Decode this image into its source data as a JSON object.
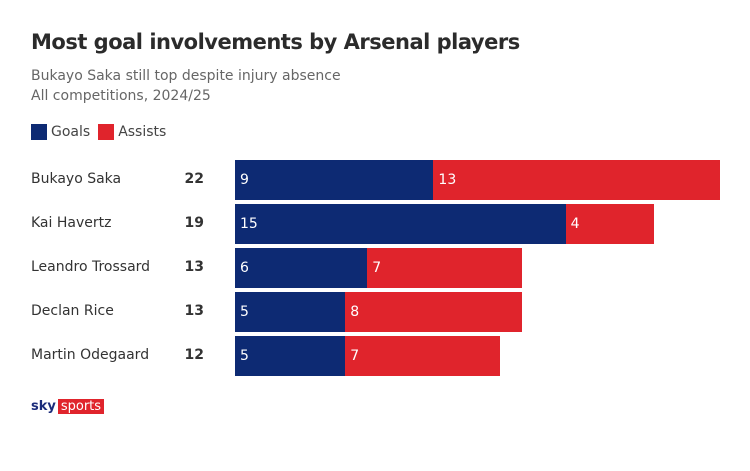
{
  "chart_data": {
    "type": "bar",
    "stacked": true,
    "orientation": "horizontal",
    "title": "Most goal involvements by Arsenal players",
    "subtitle": "Bukayo Saka still top despite injury absence",
    "subtitle2": "All competitions, 2024/25",
    "categories": [
      "Bukayo Saka",
      "Kai Havertz",
      "Leandro Trossard",
      "Declan Rice",
      "Martin Odegaard"
    ],
    "totals": [
      22,
      19,
      13,
      13,
      12
    ],
    "series": [
      {
        "name": "Goals",
        "color": "#0d2a73",
        "values": [
          9,
          15,
          6,
          5,
          5
        ]
      },
      {
        "name": "Assists",
        "color": "#e0242c",
        "values": [
          13,
          4,
          7,
          8,
          7
        ]
      }
    ],
    "xlim": [
      0,
      22
    ],
    "legend": "top-left"
  },
  "logo": {
    "sky": "sky",
    "sports": "sports"
  }
}
